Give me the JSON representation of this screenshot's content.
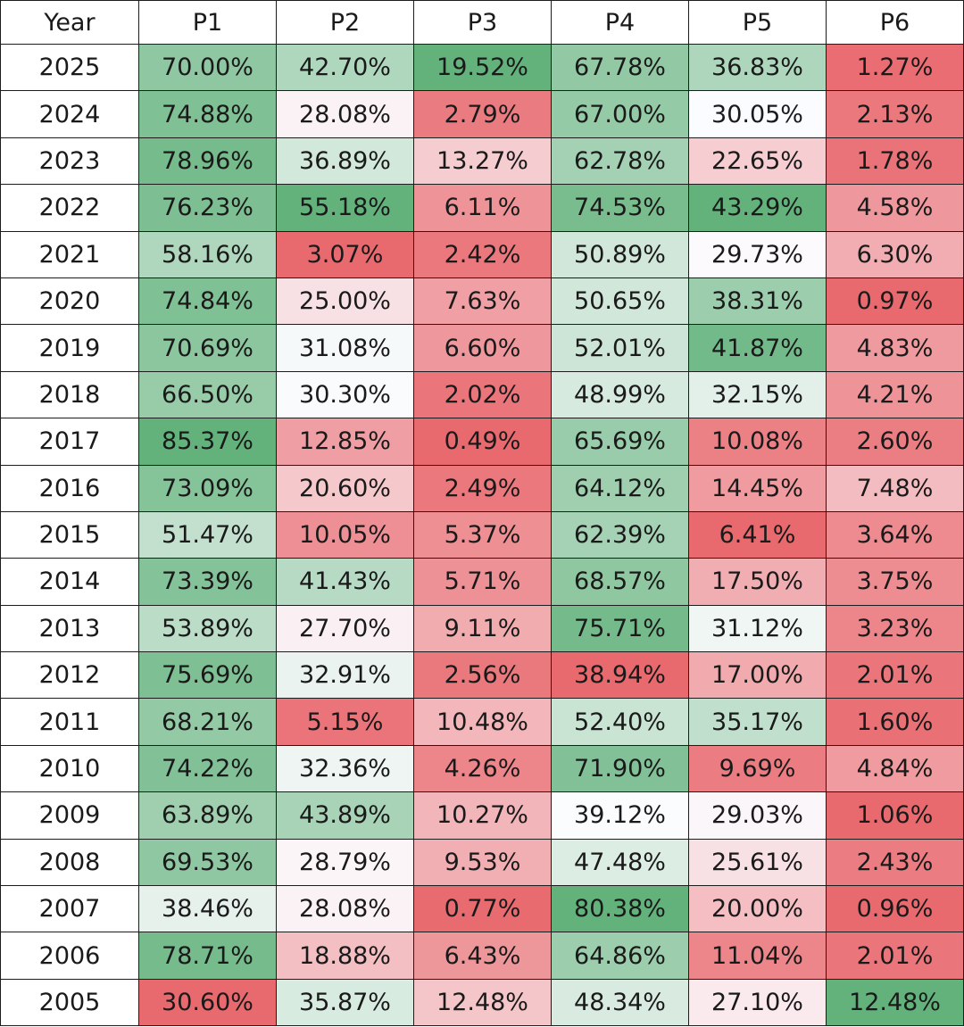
{
  "chart_data": {
    "type": "table",
    "columns": [
      "Year",
      "P1",
      "P2",
      "P3",
      "P4",
      "P5",
      "P6"
    ],
    "rows": [
      {
        "year": "2025",
        "values": [
          "70.00%",
          "42.70%",
          "19.52%",
          "67.78%",
          "36.83%",
          "1.27%"
        ]
      },
      {
        "year": "2024",
        "values": [
          "74.88%",
          "28.08%",
          "2.79%",
          "67.00%",
          "30.05%",
          "2.13%"
        ]
      },
      {
        "year": "2023",
        "values": [
          "78.96%",
          "36.89%",
          "13.27%",
          "62.78%",
          "22.65%",
          "1.78%"
        ]
      },
      {
        "year": "2022",
        "values": [
          "76.23%",
          "55.18%",
          "6.11%",
          "74.53%",
          "43.29%",
          "4.58%"
        ]
      },
      {
        "year": "2021",
        "values": [
          "58.16%",
          "3.07%",
          "2.42%",
          "50.89%",
          "29.73%",
          "6.30%"
        ]
      },
      {
        "year": "2020",
        "values": [
          "74.84%",
          "25.00%",
          "7.63%",
          "50.65%",
          "38.31%",
          "0.97%"
        ]
      },
      {
        "year": "2019",
        "values": [
          "70.69%",
          "31.08%",
          "6.60%",
          "52.01%",
          "41.87%",
          "4.83%"
        ]
      },
      {
        "year": "2018",
        "values": [
          "66.50%",
          "30.30%",
          "2.02%",
          "48.99%",
          "32.15%",
          "4.21%"
        ]
      },
      {
        "year": "2017",
        "values": [
          "85.37%",
          "12.85%",
          "0.49%",
          "65.69%",
          "10.08%",
          "2.60%"
        ]
      },
      {
        "year": "2016",
        "values": [
          "73.09%",
          "20.60%",
          "2.49%",
          "64.12%",
          "14.45%",
          "7.48%"
        ]
      },
      {
        "year": "2015",
        "values": [
          "51.47%",
          "10.05%",
          "5.37%",
          "62.39%",
          "6.41%",
          "3.64%"
        ]
      },
      {
        "year": "2014",
        "values": [
          "73.39%",
          "41.43%",
          "5.71%",
          "68.57%",
          "17.50%",
          "3.75%"
        ]
      },
      {
        "year": "2013",
        "values": [
          "53.89%",
          "27.70%",
          "9.11%",
          "75.71%",
          "31.12%",
          "3.23%"
        ]
      },
      {
        "year": "2012",
        "values": [
          "75.69%",
          "32.91%",
          "2.56%",
          "38.94%",
          "17.00%",
          "2.01%"
        ]
      },
      {
        "year": "2011",
        "values": [
          "68.21%",
          "5.15%",
          "10.48%",
          "52.40%",
          "35.17%",
          "1.60%"
        ]
      },
      {
        "year": "2010",
        "values": [
          "74.22%",
          "32.36%",
          "4.26%",
          "71.90%",
          "9.69%",
          "4.84%"
        ]
      },
      {
        "year": "2009",
        "values": [
          "63.89%",
          "43.89%",
          "10.27%",
          "39.12%",
          "29.03%",
          "1.06%"
        ]
      },
      {
        "year": "2008",
        "values": [
          "69.53%",
          "28.79%",
          "9.53%",
          "47.48%",
          "25.61%",
          "2.43%"
        ]
      },
      {
        "year": "2007",
        "values": [
          "38.46%",
          "28.08%",
          "0.77%",
          "80.38%",
          "20.00%",
          "0.96%"
        ]
      },
      {
        "year": "2006",
        "values": [
          "78.71%",
          "18.88%",
          "6.43%",
          "64.86%",
          "11.04%",
          "2.01%"
        ]
      },
      {
        "year": "2005",
        "values": [
          "30.60%",
          "35.87%",
          "12.48%",
          "48.34%",
          "27.10%",
          "12.48%"
        ]
      }
    ],
    "color_scale": {
      "low": "#e8696e",
      "mid": "#fcfcff",
      "high": "#63b27c",
      "midpoint_percent": 30
    }
  }
}
